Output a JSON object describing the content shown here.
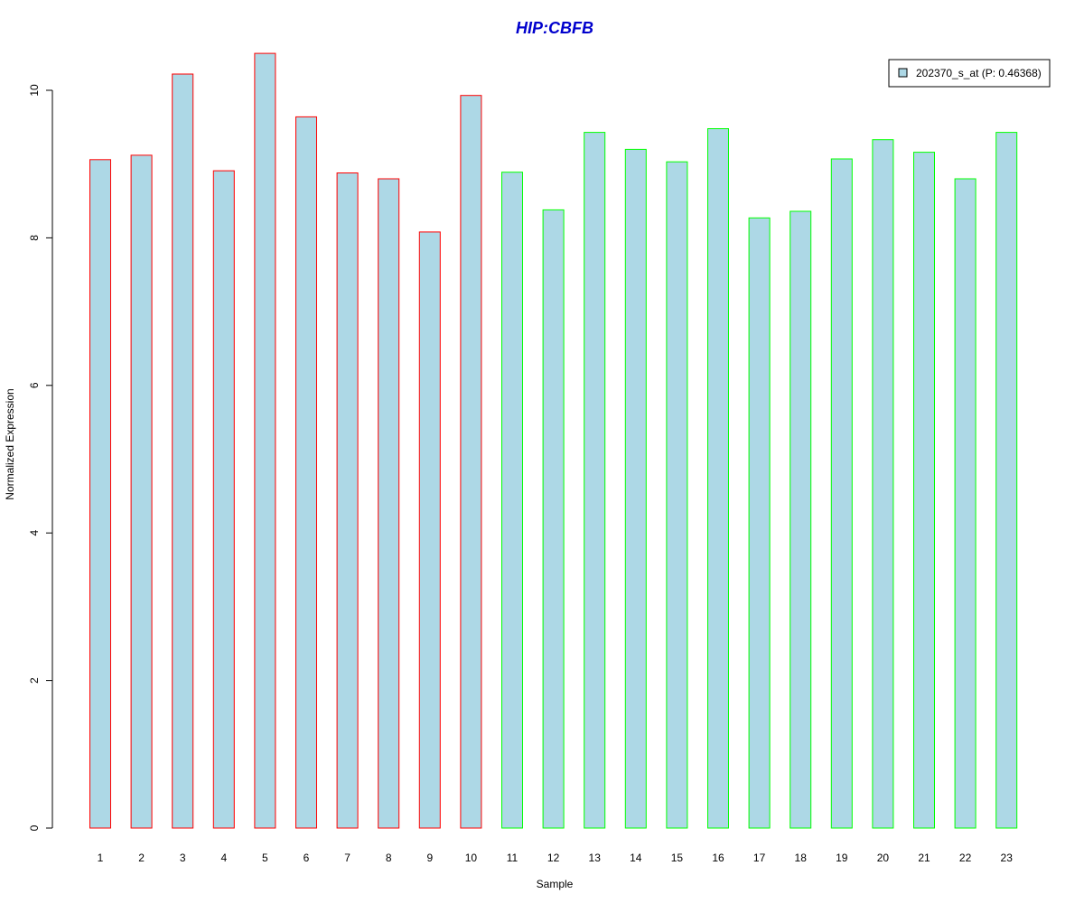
{
  "chart_data": {
    "type": "bar",
    "title": "HIP:CBFB",
    "xlabel": "Sample",
    "ylabel": "Normalized Expression",
    "ylim": [
      0,
      10.5
    ],
    "yticks": [
      0,
      2,
      4,
      6,
      8,
      10
    ],
    "categories": [
      "1",
      "2",
      "3",
      "4",
      "5",
      "6",
      "7",
      "8",
      "9",
      "10",
      "11",
      "12",
      "13",
      "14",
      "15",
      "16",
      "17",
      "18",
      "19",
      "20",
      "21",
      "22",
      "23"
    ],
    "series": [
      {
        "name": "202370_s_at (P: 0.46368)",
        "values": [
          9.06,
          9.12,
          10.22,
          8.91,
          10.5,
          9.64,
          8.88,
          8.8,
          8.08,
          9.93,
          8.89,
          8.38,
          9.43,
          9.2,
          9.03,
          9.48,
          8.27,
          8.36,
          9.07,
          9.33,
          9.16,
          8.8,
          9.43
        ]
      }
    ],
    "bar_fill": "#add8e6",
    "group_border_colors": [
      "#ff0000",
      "#ff0000",
      "#ff0000",
      "#ff0000",
      "#ff0000",
      "#ff0000",
      "#ff0000",
      "#ff0000",
      "#ff0000",
      "#ff0000",
      "#00ff00",
      "#00ff00",
      "#00ff00",
      "#00ff00",
      "#00ff00",
      "#00ff00",
      "#00ff00",
      "#00ff00",
      "#00ff00",
      "#00ff00",
      "#00ff00",
      "#00ff00",
      "#00ff00"
    ],
    "title_color": "#0000cd",
    "grid": false,
    "legend_position": "top-right"
  }
}
